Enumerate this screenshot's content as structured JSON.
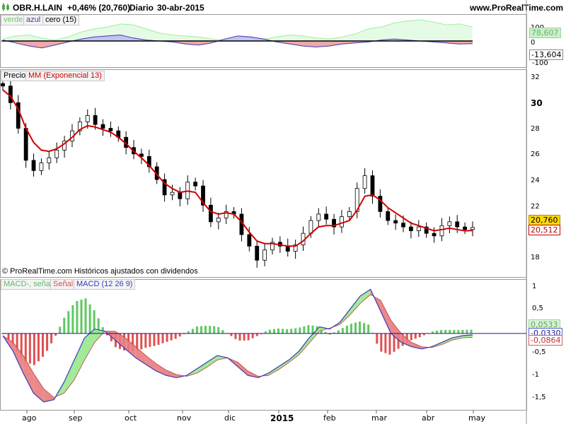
{
  "header": {
    "symbol": "OBR.H.LAIN",
    "change": "+0,46% (20,760)",
    "period": "Diario",
    "date": "30-abr-2015",
    "site": "www.ProRealTime.com"
  },
  "colors": {
    "up_green": "#98e88c",
    "down_red": "#e87c7c",
    "blue": "#3a3ab8",
    "ma_red": "#d00000",
    "candle": "#000000",
    "light_green_line": "#9cf09c",
    "grid": "#d8d8d8"
  },
  "footer": {
    "note": "© ProRealTime.com  Históricos ajustados con dividendos"
  },
  "chart_data": [
    {
      "type": "line",
      "panel": "indicator",
      "legend": [
        "verde",
        "azul",
        "cero (15)"
      ],
      "y_ticks": [
        "100",
        "0",
        "-100"
      ],
      "ylim": [
        -120,
        120
      ],
      "value_labels": {
        "green": "78,607",
        "zero": "0",
        "blue": "-13,604"
      },
      "series": [
        {
          "name": "verde",
          "values": [
            10,
            25,
            30,
            15,
            5,
            20,
            45,
            60,
            70,
            85,
            80,
            60,
            40,
            30,
            25,
            20,
            10,
            5,
            15,
            20,
            10,
            20,
            30,
            25,
            15,
            10,
            20,
            35,
            60,
            70,
            90,
            100,
            105,
            95,
            80,
            85,
            70
          ]
        },
        {
          "name": "azul",
          "values": [
            5,
            -10,
            -25,
            -35,
            -20,
            -5,
            10,
            20,
            25,
            30,
            15,
            5,
            0,
            -5,
            -15,
            -20,
            -10,
            10,
            25,
            20,
            10,
            -5,
            -15,
            -25,
            -30,
            -25,
            -15,
            -10,
            -5,
            5,
            10,
            5,
            0,
            -5,
            -10,
            -15,
            -13
          ]
        }
      ]
    },
    {
      "type": "line",
      "panel": "price",
      "legend": [
        "Precio",
        "MM (Exponencial 13)"
      ],
      "y_ticks": [
        "32",
        "30",
        "28",
        "26",
        "24",
        "22",
        "20",
        "18"
      ],
      "ylim": [
        17,
        33
      ],
      "last_price": "20,760",
      "ma_value": "20,512",
      "x_ticks": [
        "ago",
        "sep",
        "oct",
        "nov",
        "dic",
        "2015",
        "feb",
        "mar",
        "abr",
        "may"
      ],
      "series": [
        {
          "name": "Precio",
          "values": [
            31.8,
            30.5,
            28.5,
            26.0,
            25.2,
            25.8,
            26.2,
            26.8,
            27.5,
            28.3,
            29.0,
            29.5,
            28.8,
            28.5,
            28.3,
            27.8,
            27.0,
            26.5,
            26.3,
            25.5,
            24.5,
            23.3,
            23.5,
            23.0,
            24.3,
            24.0,
            22.5,
            21.2,
            21.5,
            22.0,
            21.8,
            20.2,
            19.3,
            18.2,
            19.0,
            19.6,
            19.3,
            18.9,
            19.4,
            20.3,
            21.3,
            21.8,
            21.4,
            20.8,
            21.6,
            22.0,
            23.8,
            24.8,
            23.2,
            22.0,
            21.3,
            21.1,
            20.8,
            20.5,
            20.8,
            20.3,
            20.1,
            20.9,
            21.2,
            20.8,
            20.6,
            20.76
          ]
        },
        {
          "name": "MM (Exponencial 13)",
          "values": [
            31.5,
            31.0,
            30.0,
            28.5,
            27.4,
            26.8,
            26.7,
            26.9,
            27.3,
            27.8,
            28.4,
            28.7,
            28.6,
            28.4,
            28.2,
            27.8,
            27.3,
            26.7,
            26.2,
            25.6,
            24.9,
            24.2,
            23.8,
            23.5,
            23.6,
            23.5,
            22.7,
            22.0,
            21.8,
            21.9,
            21.8,
            21.2,
            20.4,
            19.7,
            19.5,
            19.5,
            19.4,
            19.3,
            19.3,
            19.7,
            20.3,
            20.8,
            20.9,
            20.9,
            21.1,
            21.3,
            22.1,
            23.2,
            23.3,
            22.9,
            22.3,
            21.9,
            21.5,
            21.1,
            20.9,
            20.7,
            20.5,
            20.6,
            20.7,
            20.6,
            20.5,
            20.512
          ]
        }
      ]
    },
    {
      "type": "line",
      "panel": "macd",
      "legend": [
        "MACD-, señal",
        "Señal",
        "MACD (12 26 9)"
      ],
      "y_ticks": [
        "1",
        "0,5",
        "0",
        "-0,5",
        "-1",
        "-1,5"
      ],
      "ylim": [
        -1.65,
        1.15
      ],
      "value_labels": {
        "hist": "0,0533",
        "macd": "-0,0330",
        "signal": "-0,0864"
      },
      "series": [
        {
          "name": "MACD",
          "values": [
            -0.05,
            -0.4,
            -0.9,
            -1.35,
            -1.55,
            -1.5,
            -1.1,
            -0.6,
            -0.1,
            0.1,
            0.05,
            -0.15,
            -0.35,
            -0.55,
            -0.7,
            -0.85,
            -0.95,
            -1.0,
            -0.95,
            -0.8,
            -0.65,
            -0.5,
            -0.55,
            -0.75,
            -0.95,
            -1.0,
            -0.9,
            -0.75,
            -0.6,
            -0.4,
            -0.1,
            0.15,
            0.1,
            0.25,
            0.55,
            0.85,
            1.0,
            0.5,
            0.0,
            -0.2,
            -0.3,
            -0.35,
            -0.3,
            -0.2,
            -0.1,
            -0.05,
            -0.033
          ]
        },
        {
          "name": "Señal",
          "values": [
            -0.05,
            -0.2,
            -0.5,
            -0.9,
            -1.25,
            -1.45,
            -1.35,
            -1.05,
            -0.6,
            -0.2,
            0.05,
            0.05,
            -0.1,
            -0.3,
            -0.5,
            -0.68,
            -0.83,
            -0.93,
            -0.97,
            -0.9,
            -0.76,
            -0.6,
            -0.55,
            -0.65,
            -0.85,
            -0.97,
            -0.95,
            -0.82,
            -0.66,
            -0.48,
            -0.22,
            0.05,
            0.12,
            0.2,
            0.42,
            0.68,
            0.88,
            0.75,
            0.3,
            0.0,
            -0.2,
            -0.3,
            -0.32,
            -0.25,
            -0.15,
            -0.1,
            -0.0864
          ]
        }
      ]
    }
  ]
}
